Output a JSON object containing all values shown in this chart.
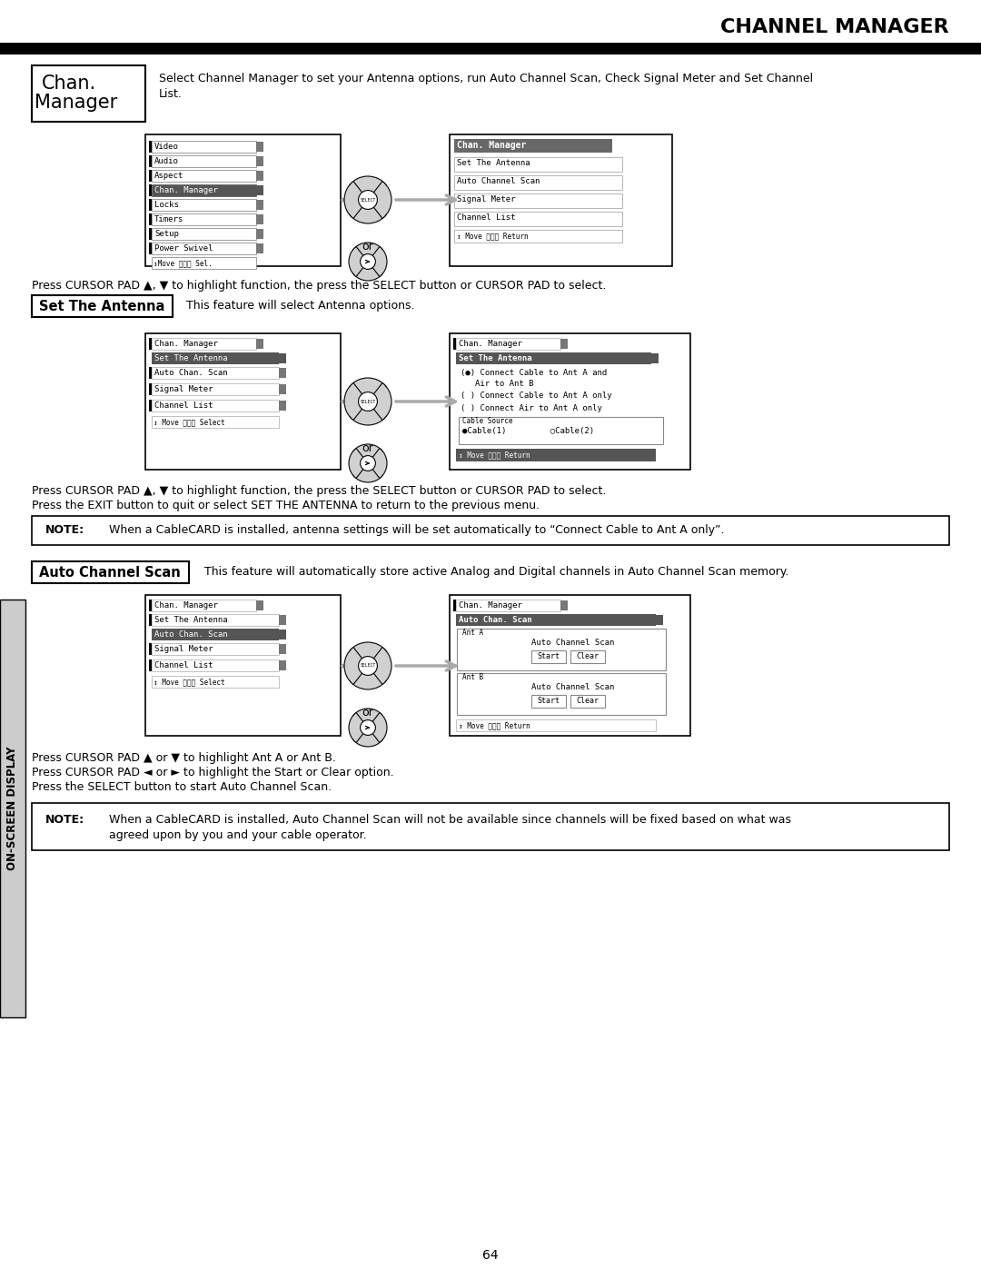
{
  "title": "CHANNEL MANAGER",
  "page_number": "64",
  "sidebar_text": "ON-SCREEN DISPLAY",
  "chan_desc1": "Select Channel Manager to set your Antenna options, run Auto Channel Scan, Check Signal Meter and Set Channel",
  "chan_desc2": "List.",
  "set_antenna_label": "Set The Antenna",
  "set_antenna_desc": "This feature will select Antenna options.",
  "auto_scan_label": "Auto Channel Scan",
  "auto_scan_desc": "This feature will automatically store active Analog and Digital channels in Auto Channel Scan memory.",
  "press1": "Press CURSOR PAD ▲, ▼ to highlight function, the press the SELECT button or CURSOR PAD to select.",
  "press2a": "Press CURSOR PAD ▲, ▼ to highlight function, the press the SELECT button or CURSOR PAD to select.",
  "press2b": "Press the EXIT button to quit or select SET THE ANTENNA to return to the previous menu.",
  "press3a": "Press CURSOR PAD ▲ or ▼ to highlight Ant A or Ant B.",
  "press3b": "Press CURSOR PAD ◄ or ► to highlight the Start or Clear option.",
  "press3c": "Press the SELECT button to start Auto Channel Scan.",
  "note1_text": "When a CableCARD is installed, antenna settings will be set automatically to “Connect Cable to Ant A only”.",
  "note2_line1": "When a CableCARD is installed, Auto Channel Scan will not be available since channels will be fixed based on what was",
  "note2_line2": "agreed upon by you and your cable operator.",
  "menu1_items": [
    "Video",
    "Audio",
    "Aspect",
    "Chan. Manager",
    "Locks",
    "Timers",
    "Setup",
    "Power Swivel"
  ],
  "menu1_highlighted": "Chan. Manager",
  "menu1_right": [
    "Set The Antenna",
    "Auto Channel Scan",
    "Signal Meter",
    "Channel List"
  ],
  "sec2_left_items": [
    "Auto Chan. Scan",
    "Signal Meter",
    "Channel List"
  ],
  "sec3_left_items": [
    "Signal Meter",
    "Channel List"
  ],
  "connect_opts": [
    "(●) Connect Cable to Ant A and\n     Air to Ant B",
    "( ) Connect Cable to Ant A only",
    "( ) Connect Air to Ant A only"
  ],
  "cable_source": "●Cable(1)         ○Cable(2)"
}
